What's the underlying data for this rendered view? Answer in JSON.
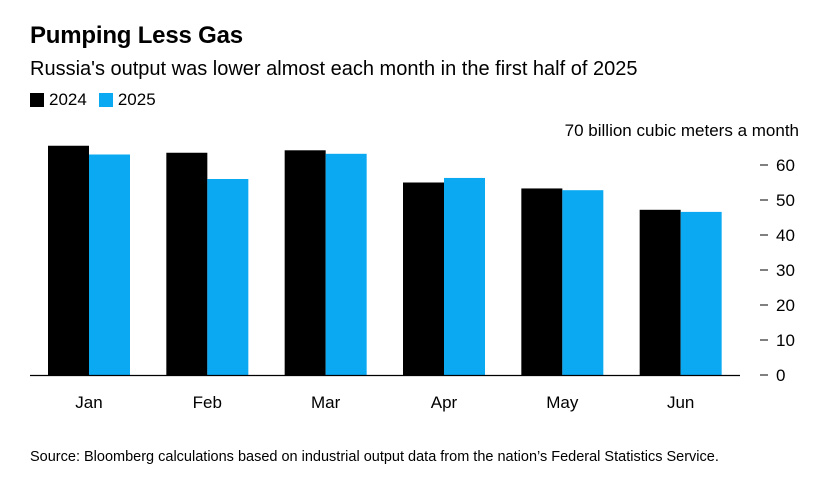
{
  "header": {
    "title": "Pumping Less Gas",
    "subtitle": "Russia's output was lower almost each month in the first half of 2025"
  },
  "legend": {
    "items": [
      {
        "label": "2024",
        "color": "#000000"
      },
      {
        "label": "2025",
        "color": "#0aa9f2"
      }
    ]
  },
  "footer": {
    "source": "Source: Bloomberg calculations based on industrial output data from the nation’s Federal Statistics Service."
  },
  "chart_data": {
    "type": "bar",
    "categories": [
      "Jan",
      "Feb",
      "Mar",
      "Apr",
      "May",
      "Jun"
    ],
    "series": [
      {
        "name": "2024",
        "color": "#000000",
        "values": [
          65.5,
          63.5,
          64.2,
          55.0,
          53.3,
          47.2
        ]
      },
      {
        "name": "2025",
        "color": "#0aa9f2",
        "values": [
          63.0,
          56.0,
          63.2,
          56.3,
          52.8,
          46.6
        ]
      }
    ],
    "y_axis": {
      "position": "right",
      "ylim": [
        0,
        70
      ],
      "ticks": [
        "0",
        "10",
        "20",
        "30",
        "40",
        "50",
        "60",
        "70 billion cubic meters a month"
      ]
    },
    "grid": false
  }
}
